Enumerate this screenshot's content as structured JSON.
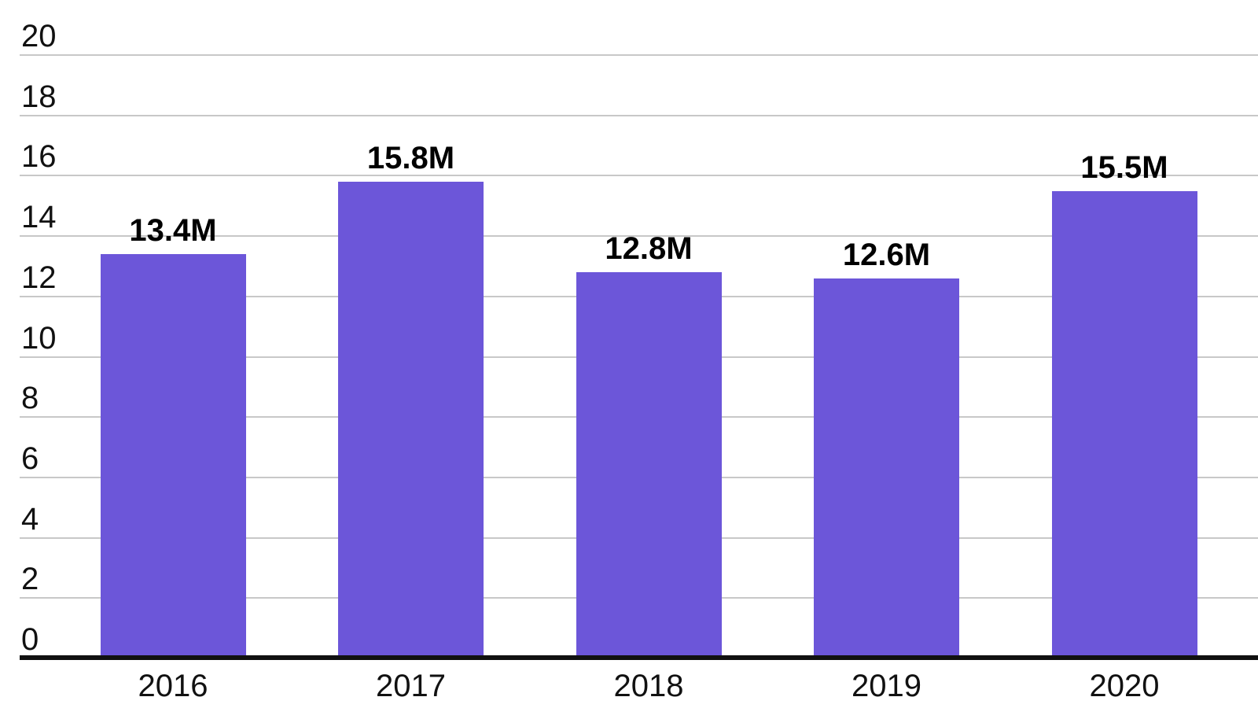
{
  "chart_data": {
    "type": "bar",
    "title": "",
    "xlabel": "",
    "ylabel": "",
    "categories": [
      "2016",
      "2017",
      "2018",
      "2019",
      "2020"
    ],
    "values": [
      13.4,
      15.8,
      12.8,
      12.6,
      15.5
    ],
    "value_labels": [
      "13.4M",
      "15.8M",
      "12.8M",
      "12.6M",
      "15.5M"
    ],
    "ylim": [
      0,
      20
    ],
    "yticks": [
      0,
      2,
      4,
      6,
      8,
      10,
      12,
      14,
      16,
      18,
      20
    ],
    "grid": "horizontal",
    "legend": "none",
    "colors": {
      "bar": "#6c56d9",
      "gridline": "#c8c8c8",
      "axis_line": "#111111",
      "tick_text": "#111111",
      "value_text": "#000000",
      "background": "#ffffff"
    }
  }
}
